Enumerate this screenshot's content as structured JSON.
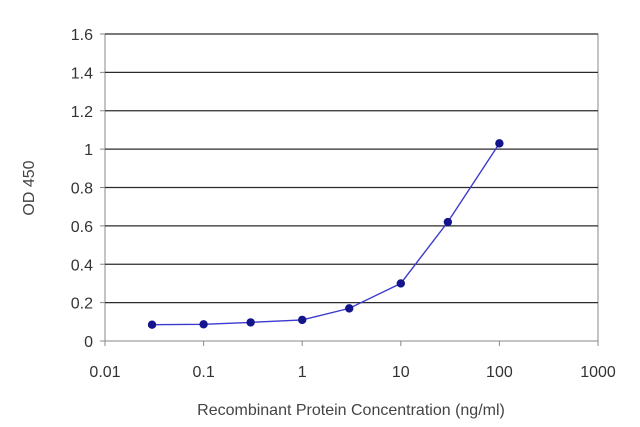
{
  "chart_data": {
    "type": "line",
    "title": "",
    "xlabel": "Recombinant Protein Concentration (ng/ml)",
    "ylabel": "OD 450",
    "x_scale": "log",
    "xlim": [
      0.01,
      1000
    ],
    "ylim": [
      0,
      1.6
    ],
    "x_ticks": [
      "0.01",
      "0.1",
      "1",
      "10",
      "100",
      "1000"
    ],
    "y_ticks": [
      "0",
      "0.2",
      "0.4",
      "0.6",
      "0.8",
      "1",
      "1.2",
      "1.4",
      "1.6"
    ],
    "grid": "horizontal",
    "legend": "none",
    "series": [
      {
        "x": [
          0.03,
          0.1,
          0.3,
          1,
          3,
          10,
          30,
          100
        ],
        "y": [
          0.085,
          0.087,
          0.097,
          0.11,
          0.17,
          0.3,
          0.62,
          1.03
        ]
      }
    ],
    "colors": {
      "line": "#3a3acd",
      "marker": "#14148c",
      "grid": "#2b2b2b",
      "frame": "#8a8a8a"
    }
  }
}
